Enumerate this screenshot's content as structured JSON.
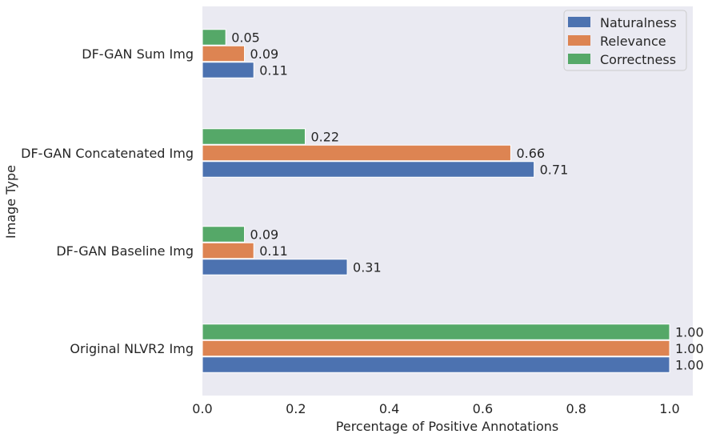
{
  "chart_data": {
    "type": "bar",
    "orientation": "horizontal",
    "title": "",
    "xlabel": "Percentage of Positive Annotations",
    "ylabel": "Image Type",
    "xlim": [
      0,
      1.0
    ],
    "xticks": [
      0.0,
      0.2,
      0.4,
      0.6,
      0.8,
      1.0
    ],
    "xtick_labels": [
      "0.0",
      "0.2",
      "0.4",
      "0.6",
      "0.8",
      "1.0"
    ],
    "categories": [
      "Original NLVR2 Img",
      "DF-GAN Baseline Img",
      "DF-GAN Concatenated Img",
      "DF-GAN Sum Img"
    ],
    "series": [
      {
        "name": "Naturalness",
        "color": "#4c72b0",
        "values": [
          1.0,
          0.31,
          0.71,
          0.11
        ],
        "labels": [
          "1.00",
          "0.31",
          "0.71",
          "0.11"
        ]
      },
      {
        "name": "Relevance",
        "color": "#dd8452",
        "values": [
          1.0,
          0.11,
          0.66,
          0.09
        ],
        "labels": [
          "1.00",
          "0.11",
          "0.66",
          "0.09"
        ]
      },
      {
        "name": "Correctness",
        "color": "#55a868",
        "values": [
          1.0,
          0.09,
          0.22,
          0.05
        ],
        "labels": [
          "1.00",
          "0.09",
          "0.22",
          "0.05"
        ]
      }
    ],
    "legend_position": "top-right",
    "grid": false,
    "background": "#eaeaf2"
  }
}
